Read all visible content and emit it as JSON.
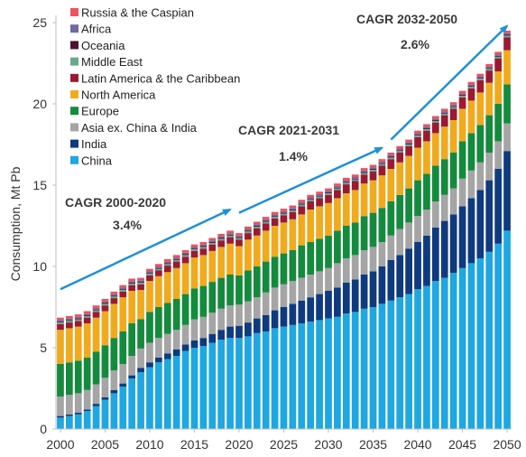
{
  "chart_data": {
    "type": "bar",
    "stacked": true,
    "ylabel": "Consumption, Mt Pb",
    "ylim": [
      0,
      25
    ],
    "yticks": [
      0,
      5,
      10,
      15,
      20,
      25
    ],
    "xticks": [
      "2000",
      "2005",
      "2010",
      "2015",
      "2020",
      "2025",
      "2030",
      "2035",
      "2040",
      "2045",
      "2050"
    ],
    "grid": false,
    "legend_position": "top-left",
    "categories": [
      "2000",
      "2001",
      "2002",
      "2003",
      "2004",
      "2005",
      "2006",
      "2007",
      "2008",
      "2009",
      "2010",
      "2011",
      "2012",
      "2013",
      "2014",
      "2015",
      "2016",
      "2017",
      "2018",
      "2019",
      "2020",
      "2021",
      "2022",
      "2023",
      "2024",
      "2025",
      "2026",
      "2027",
      "2028",
      "2029",
      "2030",
      "2031",
      "2032",
      "2033",
      "2034",
      "2035",
      "2036",
      "2037",
      "2038",
      "2039",
      "2040",
      "2041",
      "2042",
      "2043",
      "2044",
      "2045",
      "2046",
      "2047",
      "2048",
      "2049",
      "2050"
    ],
    "series": [
      {
        "name": "China",
        "color": "#1ea7e1",
        "values": [
          0.7,
          0.8,
          0.9,
          1.1,
          1.4,
          1.8,
          2.2,
          2.6,
          3.1,
          3.5,
          3.8,
          4.1,
          4.3,
          4.5,
          4.8,
          5.0,
          5.1,
          5.3,
          5.5,
          5.6,
          5.6,
          5.7,
          5.9,
          6.0,
          6.2,
          6.3,
          6.4,
          6.5,
          6.6,
          6.7,
          6.8,
          6.9,
          7.1,
          7.2,
          7.4,
          7.5,
          7.7,
          7.9,
          8.1,
          8.3,
          8.6,
          8.8,
          9.1,
          9.3,
          9.6,
          9.9,
          10.2,
          10.5,
          10.9,
          11.4,
          12.2
        ]
      },
      {
        "name": "India",
        "color": "#0f3a7e",
        "values": [
          0.1,
          0.1,
          0.1,
          0.1,
          0.15,
          0.15,
          0.2,
          0.2,
          0.2,
          0.25,
          0.3,
          0.3,
          0.35,
          0.4,
          0.4,
          0.45,
          0.5,
          0.55,
          0.6,
          0.7,
          0.75,
          0.85,
          0.9,
          1.0,
          1.1,
          1.2,
          1.3,
          1.4,
          1.5,
          1.6,
          1.7,
          1.8,
          1.9,
          2.0,
          2.1,
          2.2,
          2.3,
          2.5,
          2.6,
          2.8,
          2.9,
          3.1,
          3.3,
          3.5,
          3.6,
          3.8,
          4.0,
          4.2,
          4.4,
          4.6,
          4.9
        ]
      },
      {
        "name": "Asia ex. China & India",
        "color": "#a5a5a5",
        "values": [
          1.2,
          1.2,
          1.2,
          1.2,
          1.2,
          1.2,
          1.2,
          1.2,
          1.2,
          1.2,
          1.2,
          1.2,
          1.2,
          1.2,
          1.2,
          1.3,
          1.3,
          1.3,
          1.3,
          1.3,
          1.3,
          1.3,
          1.3,
          1.4,
          1.4,
          1.4,
          1.4,
          1.4,
          1.4,
          1.4,
          1.4,
          1.5,
          1.5,
          1.5,
          1.5,
          1.5,
          1.5,
          1.5,
          1.6,
          1.6,
          1.6,
          1.6,
          1.6,
          1.6,
          1.6,
          1.7,
          1.7,
          1.7,
          1.7,
          1.7,
          1.7
        ]
      },
      {
        "name": "Europe",
        "color": "#148a3d",
        "values": [
          2.0,
          2.0,
          2.0,
          2.0,
          2.0,
          2.0,
          2.0,
          2.0,
          2.0,
          1.8,
          1.9,
          1.9,
          1.9,
          1.9,
          1.9,
          1.9,
          1.9,
          1.9,
          1.9,
          1.9,
          1.8,
          1.9,
          1.9,
          1.9,
          1.9,
          1.9,
          1.9,
          2.0,
          2.0,
          2.0,
          2.0,
          2.0,
          2.0,
          2.0,
          2.1,
          2.1,
          2.1,
          2.1,
          2.1,
          2.1,
          2.2,
          2.2,
          2.2,
          2.2,
          2.2,
          2.3,
          2.3,
          2.3,
          2.3,
          2.3,
          2.4
        ]
      },
      {
        "name": "North America",
        "color": "#f0aa1e",
        "values": [
          2.1,
          2.1,
          2.1,
          2.1,
          2.1,
          2.1,
          2.1,
          2.1,
          2.0,
          1.8,
          1.9,
          1.9,
          1.9,
          1.9,
          1.9,
          1.9,
          1.9,
          1.9,
          1.9,
          1.9,
          1.8,
          1.9,
          1.9,
          1.9,
          1.9,
          1.9,
          1.9,
          1.9,
          2.0,
          2.0,
          2.0,
          2.0,
          2.0,
          2.0,
          2.0,
          2.0,
          2.0,
          2.0,
          2.0,
          2.0,
          2.0,
          2.0,
          2.0,
          2.0,
          2.0,
          2.0,
          2.0,
          2.0,
          2.0,
          2.0,
          2.1
        ]
      },
      {
        "name": "Latin America & the Caribbean",
        "color": "#9b1a32",
        "values": [
          0.35,
          0.35,
          0.35,
          0.35,
          0.35,
          0.35,
          0.35,
          0.35,
          0.35,
          0.35,
          0.35,
          0.35,
          0.4,
          0.4,
          0.4,
          0.4,
          0.4,
          0.4,
          0.4,
          0.4,
          0.4,
          0.4,
          0.45,
          0.45,
          0.45,
          0.45,
          0.45,
          0.5,
          0.5,
          0.5,
          0.5,
          0.5,
          0.55,
          0.55,
          0.55,
          0.55,
          0.6,
          0.6,
          0.6,
          0.6,
          0.65,
          0.65,
          0.65,
          0.7,
          0.7,
          0.7,
          0.75,
          0.75,
          0.75,
          0.8,
          0.8
        ]
      },
      {
        "name": "Middle East",
        "color": "#6aa88c",
        "values": [
          0.1,
          0.1,
          0.1,
          0.1,
          0.1,
          0.1,
          0.1,
          0.1,
          0.1,
          0.1,
          0.1,
          0.1,
          0.1,
          0.1,
          0.1,
          0.1,
          0.1,
          0.1,
          0.1,
          0.1,
          0.1,
          0.1,
          0.1,
          0.1,
          0.1,
          0.1,
          0.1,
          0.1,
          0.1,
          0.1,
          0.1,
          0.1,
          0.1,
          0.1,
          0.1,
          0.1,
          0.1,
          0.1,
          0.1,
          0.1,
          0.1,
          0.1,
          0.1,
          0.1,
          0.1,
          0.1,
          0.1,
          0.1,
          0.1,
          0.1,
          0.1
        ]
      },
      {
        "name": "Oceania",
        "color": "#4d1230",
        "values": [
          0.05,
          0.05,
          0.05,
          0.05,
          0.05,
          0.05,
          0.05,
          0.05,
          0.05,
          0.05,
          0.05,
          0.05,
          0.05,
          0.05,
          0.05,
          0.05,
          0.05,
          0.05,
          0.05,
          0.05,
          0.05,
          0.05,
          0.05,
          0.05,
          0.05,
          0.05,
          0.05,
          0.05,
          0.05,
          0.05,
          0.05,
          0.05,
          0.05,
          0.05,
          0.05,
          0.05,
          0.05,
          0.05,
          0.05,
          0.05,
          0.05,
          0.05,
          0.05,
          0.05,
          0.05,
          0.05,
          0.05,
          0.05,
          0.05,
          0.05,
          0.05
        ]
      },
      {
        "name": "Africa",
        "color": "#7068a0",
        "values": [
          0.1,
          0.1,
          0.1,
          0.1,
          0.1,
          0.1,
          0.1,
          0.1,
          0.1,
          0.1,
          0.1,
          0.1,
          0.1,
          0.1,
          0.1,
          0.1,
          0.1,
          0.1,
          0.1,
          0.1,
          0.1,
          0.1,
          0.1,
          0.1,
          0.1,
          0.1,
          0.1,
          0.1,
          0.1,
          0.1,
          0.1,
          0.1,
          0.1,
          0.1,
          0.1,
          0.1,
          0.1,
          0.1,
          0.1,
          0.1,
          0.1,
          0.1,
          0.1,
          0.1,
          0.1,
          0.1,
          0.1,
          0.1,
          0.1,
          0.1,
          0.1
        ]
      },
      {
        "name": "Russia & the Caspian",
        "color": "#f0505a",
        "values": [
          0.15,
          0.15,
          0.15,
          0.15,
          0.15,
          0.15,
          0.15,
          0.15,
          0.15,
          0.15,
          0.15,
          0.15,
          0.15,
          0.15,
          0.15,
          0.15,
          0.15,
          0.15,
          0.15,
          0.15,
          0.15,
          0.15,
          0.15,
          0.15,
          0.15,
          0.15,
          0.15,
          0.15,
          0.15,
          0.15,
          0.15,
          0.15,
          0.15,
          0.15,
          0.15,
          0.15,
          0.15,
          0.15,
          0.15,
          0.15,
          0.15,
          0.15,
          0.15,
          0.15,
          0.15,
          0.15,
          0.15,
          0.15,
          0.15,
          0.15,
          0.15
        ]
      }
    ],
    "annotations": [
      {
        "title": "CAGR  2000-2020",
        "rate": "3.4%",
        "from": [
          "2000",
          8.6
        ],
        "to": [
          "2019",
          13.5
        ]
      },
      {
        "title": "CAGR  2021-2031",
        "rate": "1.4%",
        "from": [
          "2020",
          13.3
        ],
        "to": [
          "2036",
          17.3
        ]
      },
      {
        "title": "CAGR  2032-2050",
        "rate": "2.6%",
        "from": [
          "2037",
          17.8
        ],
        "to": [
          "2050",
          24.8
        ]
      }
    ],
    "arrow_color": "#1e90d8"
  }
}
